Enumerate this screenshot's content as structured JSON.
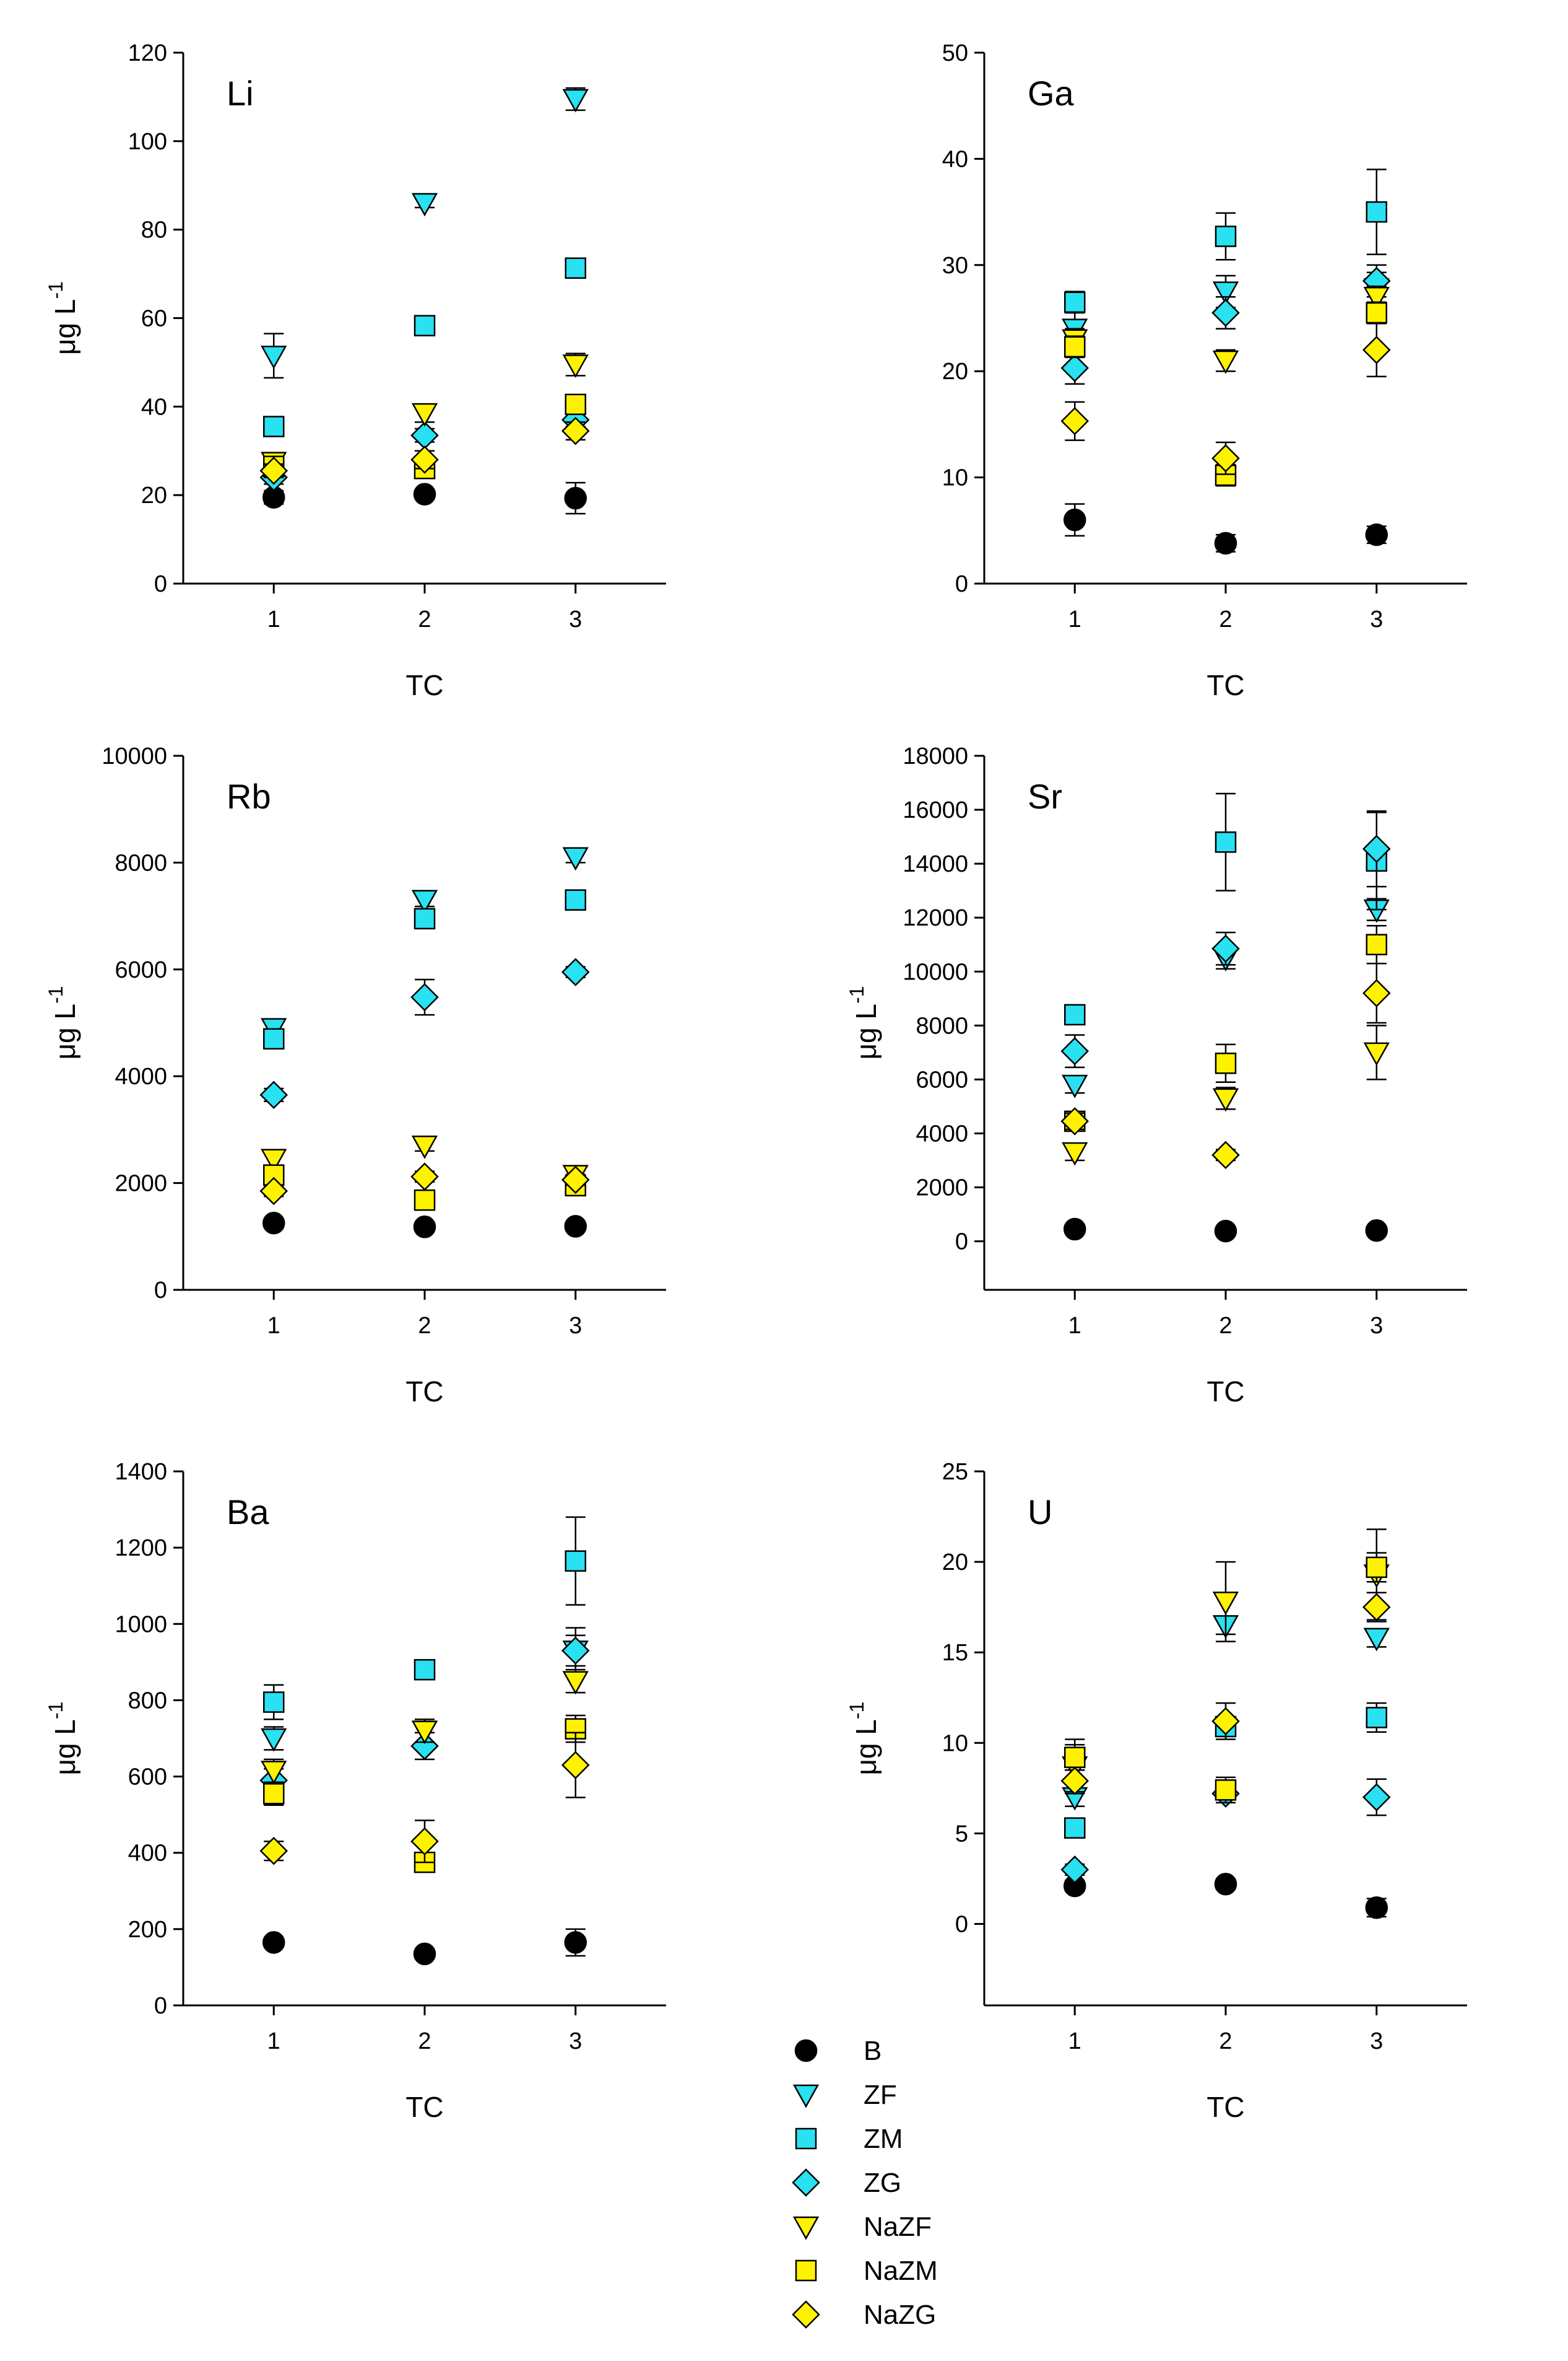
{
  "figure": {
    "legend": {
      "placement": "bottom-center",
      "entries": [
        {
          "label": "B",
          "marker": "circle",
          "color": "#000000"
        },
        {
          "label": "ZF",
          "marker": "triangle-down",
          "color": "#29E1F0"
        },
        {
          "label": "ZM",
          "marker": "square",
          "color": "#29E1F0"
        },
        {
          "label": "ZG",
          "marker": "diamond",
          "color": "#29E1F0"
        },
        {
          "label": "NaZF",
          "marker": "triangle-down",
          "color": "#FFF200"
        },
        {
          "label": "NaZM",
          "marker": "square",
          "color": "#FFF200"
        },
        {
          "label": "NaZG",
          "marker": "diamond",
          "color": "#FFF200"
        }
      ]
    }
  },
  "chart_data": [
    {
      "type": "scatter",
      "title": "Li",
      "xlabel": "TC",
      "ylabel": "μg L",
      "ylabel_superscript": "-1",
      "grid": false,
      "xlim": [
        0.4,
        3.6
      ],
      "ylim": [
        0,
        120
      ],
      "x_ticks": [
        "1",
        "2",
        "3"
      ],
      "y_ticks": [
        "0",
        "20",
        "40",
        "60",
        "80",
        "100",
        "120"
      ],
      "series": [
        {
          "name": "B",
          "x": [
            1,
            2,
            3
          ],
          "y": [
            19.5,
            20.2,
            19.3
          ],
          "err": [
            1.5,
            1,
            3.5
          ]
        },
        {
          "name": "ZF",
          "x": [
            1,
            2,
            3
          ],
          "y": [
            51.5,
            86,
            109.5
          ],
          "err": [
            5,
            1,
            2.5
          ]
        },
        {
          "name": "ZM",
          "x": [
            1,
            2,
            3
          ],
          "y": [
            35.5,
            58.3,
            71.3
          ],
          "err": [
            1,
            1,
            1
          ]
        },
        {
          "name": "ZG",
          "x": [
            1,
            2,
            3
          ],
          "y": [
            24,
            33.5,
            37
          ],
          "err": [
            1.5,
            1.5,
            1.5
          ]
        },
        {
          "name": "NaZF",
          "x": [
            1,
            2,
            3
          ],
          "y": [
            27.5,
            38.5,
            49.5
          ],
          "err": [
            1.5,
            2,
            2.5
          ]
        },
        {
          "name": "NaZM",
          "x": [
            1,
            2,
            3
          ],
          "y": [
            26.5,
            26,
            40.5
          ],
          "err": [
            1.5,
            1.5,
            1.5
          ]
        },
        {
          "name": "NaZG",
          "x": [
            1,
            2,
            3
          ],
          "y": [
            25.5,
            28,
            34.5
          ],
          "err": [
            1.5,
            2,
            2
          ]
        }
      ]
    },
    {
      "type": "scatter",
      "title": "Ga",
      "xlabel": "TC",
      "ylabel": "",
      "ylabel_superscript": "",
      "grid": false,
      "xlim": [
        0.4,
        3.6
      ],
      "ylim": [
        0,
        50
      ],
      "x_ticks": [
        "1",
        "2",
        "3"
      ],
      "y_ticks": [
        "0",
        "10",
        "20",
        "30",
        "40",
        "50"
      ],
      "series": [
        {
          "name": "B",
          "x": [
            1,
            2,
            3
          ],
          "y": [
            6,
            3.8,
            4.6
          ],
          "err": [
            1.5,
            0.8,
            0.8
          ]
        },
        {
          "name": "ZF",
          "x": [
            1,
            2,
            3
          ],
          "y": [
            24,
            27.5,
            27.8
          ],
          "err": [
            1.5,
            1.5,
            1.5
          ]
        },
        {
          "name": "ZM",
          "x": [
            1,
            2,
            3
          ],
          "y": [
            26.5,
            32.7,
            35
          ],
          "err": [
            1,
            2.2,
            4
          ]
        },
        {
          "name": "ZG",
          "x": [
            1,
            2,
            3
          ],
          "y": [
            20.3,
            25.5,
            28.5
          ],
          "err": [
            1.5,
            1.5,
            1.5
          ]
        },
        {
          "name": "NaZF",
          "x": [
            1,
            2,
            3
          ],
          "y": [
            23,
            21,
            27
          ],
          "err": [
            1,
            1,
            1
          ]
        },
        {
          "name": "NaZM",
          "x": [
            1,
            2,
            3
          ],
          "y": [
            22.3,
            10.2,
            25.5
          ],
          "err": [
            1,
            1,
            1
          ]
        },
        {
          "name": "NaZG",
          "x": [
            1,
            2,
            3
          ],
          "y": [
            15.3,
            11.8,
            22
          ],
          "err": [
            1.8,
            1.5,
            2.5
          ]
        }
      ]
    },
    {
      "type": "scatter",
      "title": "Rb",
      "xlabel": "TC",
      "ylabel": "μg L",
      "ylabel_superscript": "-1",
      "grid": false,
      "xlim": [
        0.4,
        3.6
      ],
      "ylim": [
        0,
        10000
      ],
      "x_ticks": [
        "1",
        "2",
        "3"
      ],
      "y_ticks": [
        "0",
        "2000",
        "4000",
        "6000",
        "8000",
        "10000"
      ],
      "series": [
        {
          "name": "B",
          "x": [
            1,
            2,
            3
          ],
          "y": [
            1250,
            1180,
            1190
          ],
          "err": [
            60,
            60,
            60
          ]
        },
        {
          "name": "ZF",
          "x": [
            1,
            2,
            3
          ],
          "y": [
            4900,
            7300,
            8100
          ],
          "err": [
            120,
            120,
            100
          ]
        },
        {
          "name": "ZM",
          "x": [
            1,
            2,
            3
          ],
          "y": [
            4700,
            6950,
            7300
          ],
          "err": [
            120,
            150,
            100
          ]
        },
        {
          "name": "ZG",
          "x": [
            1,
            2,
            3
          ],
          "y": [
            3650,
            5480,
            5950
          ],
          "err": [
            120,
            330,
            100
          ]
        },
        {
          "name": "NaZF",
          "x": [
            1,
            2,
            3
          ],
          "y": [
            2450,
            2700,
            2150
          ],
          "err": [
            120,
            100,
            100
          ]
        },
        {
          "name": "NaZM",
          "x": [
            1,
            2,
            3
          ],
          "y": [
            2150,
            1680,
            1950
          ],
          "err": [
            100,
            80,
            100
          ]
        },
        {
          "name": "NaZG",
          "x": [
            1,
            2,
            3
          ],
          "y": [
            1850,
            2120,
            2060
          ],
          "err": [
            100,
            100,
            100
          ]
        }
      ]
    },
    {
      "type": "scatter",
      "title": "Sr",
      "xlabel": "TC",
      "ylabel": "μg L",
      "ylabel_superscript": "-1",
      "grid": false,
      "xlim": [
        0.4,
        3.6
      ],
      "ylim": [
        -1800,
        18000
      ],
      "x_ticks": [
        "1",
        "2",
        "3"
      ],
      "y_ticks": [
        "0",
        "2000",
        "4000",
        "6000",
        "8000",
        "10000",
        "12000",
        "14000",
        "16000",
        "18000"
      ],
      "series": [
        {
          "name": "B",
          "x": [
            1,
            2,
            3
          ],
          "y": [
            450,
            380,
            400
          ],
          "err": [
            100,
            100,
            100
          ]
        },
        {
          "name": "ZF",
          "x": [
            1,
            2,
            3
          ],
          "y": [
            5800,
            10500,
            12300
          ],
          "err": [
            300,
            400,
            400
          ]
        },
        {
          "name": "ZM",
          "x": [
            1,
            2,
            3
          ],
          "y": [
            8400,
            14800,
            14100
          ],
          "err": [
            250,
            1800,
            1800
          ]
        },
        {
          "name": "ZG",
          "x": [
            1,
            2,
            3
          ],
          "y": [
            7050,
            10850,
            14550
          ],
          "err": [
            600,
            600,
            1400
          ]
        },
        {
          "name": "NaZF",
          "x": [
            1,
            2,
            3
          ],
          "y": [
            3300,
            5300,
            7000
          ],
          "err": [
            300,
            400,
            1000
          ]
        },
        {
          "name": "NaZM",
          "x": [
            1,
            2,
            3
          ],
          "y": [
            4450,
            6600,
            11000
          ],
          "err": [
            300,
            700,
            700
          ]
        },
        {
          "name": "NaZG",
          "x": [
            1,
            2,
            3
          ],
          "y": [
            4450,
            3200,
            9200
          ],
          "err": [
            300,
            200,
            1100
          ]
        }
      ]
    },
    {
      "type": "scatter",
      "title": "Ba",
      "xlabel": "TC",
      "ylabel": "μg L",
      "ylabel_superscript": "-1",
      "grid": false,
      "xlim": [
        0.4,
        3.6
      ],
      "ylim": [
        0,
        1400
      ],
      "x_ticks": [
        "1",
        "2",
        "3"
      ],
      "y_ticks": [
        "0",
        "200",
        "400",
        "600",
        "800",
        "1000",
        "1200",
        "1400"
      ],
      "series": [
        {
          "name": "B",
          "x": [
            1,
            2,
            3
          ],
          "y": [
            165,
            135,
            165
          ],
          "err": [
            12,
            12,
            35
          ]
        },
        {
          "name": "ZF",
          "x": [
            1,
            2,
            3
          ],
          "y": [
            700,
            720,
            930
          ],
          "err": [
            30,
            30,
            40
          ]
        },
        {
          "name": "ZM",
          "x": [
            1,
            2,
            3
          ],
          "y": [
            795,
            880,
            1165
          ],
          "err": [
            45,
            20,
            115
          ]
        },
        {
          "name": "ZG",
          "x": [
            1,
            2,
            3
          ],
          "y": [
            590,
            680,
            930
          ],
          "err": [
            30,
            35,
            60
          ]
        },
        {
          "name": "NaZF",
          "x": [
            1,
            2,
            3
          ],
          "y": [
            615,
            720,
            850
          ],
          "err": [
            30,
            30,
            30
          ]
        },
        {
          "name": "NaZM",
          "x": [
            1,
            2,
            3
          ],
          "y": [
            555,
            375,
            725
          ],
          "err": [
            30,
            20,
            35
          ]
        },
        {
          "name": "NaZG",
          "x": [
            1,
            2,
            3
          ],
          "y": [
            405,
            430,
            630
          ],
          "err": [
            25,
            55,
            85
          ]
        }
      ]
    },
    {
      "type": "scatter",
      "title": "U",
      "xlabel": "TC",
      "ylabel": "μg L",
      "ylabel_superscript": "-1",
      "grid": false,
      "xlim": [
        0.4,
        3.6
      ],
      "ylim": [
        -4.5,
        25
      ],
      "x_ticks": [
        "1",
        "2",
        "3"
      ],
      "y_ticks": [
        "0",
        "5",
        "10",
        "15",
        "20",
        "25"
      ],
      "series": [
        {
          "name": "B",
          "x": [
            1,
            2,
            3
          ],
          "y": [
            2.1,
            2.2,
            0.9
          ],
          "err": [
            0.3,
            0.3,
            0.5
          ]
        },
        {
          "name": "ZF",
          "x": [
            1,
            2,
            3
          ],
          "y": [
            7,
            16.5,
            15.8
          ],
          "err": [
            0.5,
            0.5,
            0.5
          ]
        },
        {
          "name": "ZM",
          "x": [
            1,
            2,
            3
          ],
          "y": [
            5.3,
            10.9,
            11.4
          ],
          "err": [
            0.4,
            0.4,
            0.8
          ]
        },
        {
          "name": "ZG",
          "x": [
            1,
            2,
            3
          ],
          "y": [
            3,
            7.2,
            7
          ],
          "err": [
            0.3,
            0.3,
            1
          ]
        },
        {
          "name": "NaZF",
          "x": [
            1,
            2,
            3
          ],
          "y": [
            8.7,
            17.8,
            19.3
          ],
          "err": [
            1.5,
            2.2,
            2.5
          ]
        },
        {
          "name": "NaZM",
          "x": [
            1,
            2,
            3
          ],
          "y": [
            9.2,
            7.4,
            19.7
          ],
          "err": [
            0.7,
            0.7,
            0.8
          ]
        },
        {
          "name": "NaZG",
          "x": [
            1,
            2,
            3
          ],
          "y": [
            7.9,
            11.2,
            17.5
          ],
          "err": [
            0.6,
            1,
            0.8
          ]
        }
      ]
    }
  ]
}
